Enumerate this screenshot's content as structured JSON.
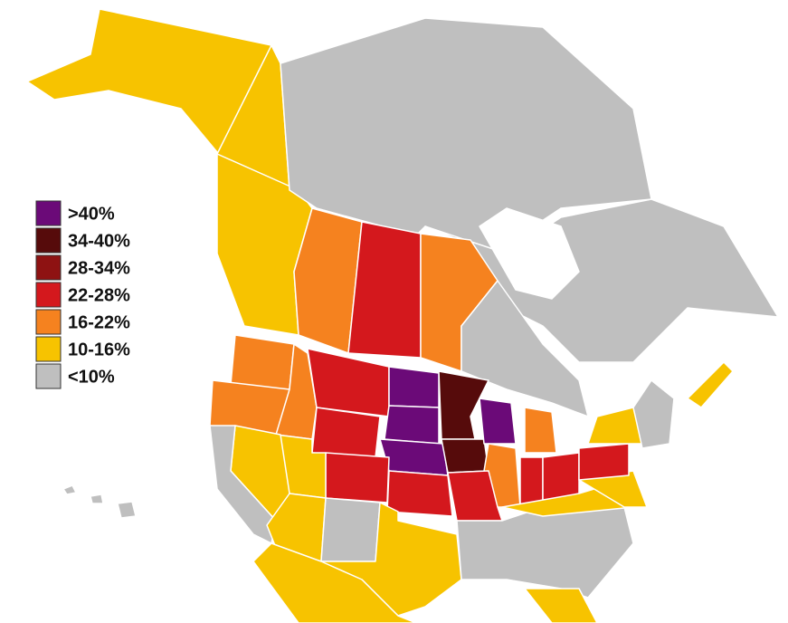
{
  "legend": {
    "items": [
      {
        "label": ">40%",
        "color": "#6b0a78"
      },
      {
        "label": "34-40%",
        "color": "#560b0b"
      },
      {
        "label": "28-34%",
        "color": "#8e1212"
      },
      {
        "label": "22-28%",
        "color": "#d4181d"
      },
      {
        "label": "16-22%",
        "color": "#f5821f"
      },
      {
        "label": "10-16%",
        "color": "#f7c300"
      },
      {
        "label": "<10%",
        "color": "#bfbfbf"
      }
    ]
  }
}
